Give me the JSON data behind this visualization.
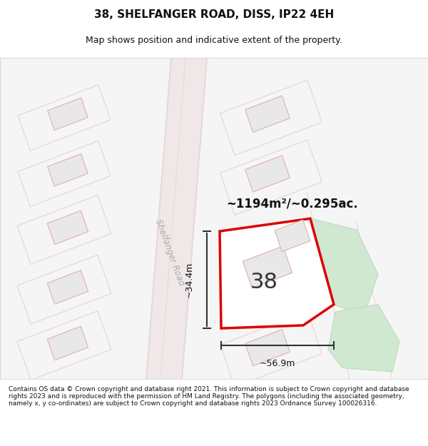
{
  "title_line1": "38, SHELFANGER ROAD, DISS, IP22 4EH",
  "title_line2": "Map shows position and indicative extent of the property.",
  "footer_text": "Contains OS data © Crown copyright and database right 2021. This information is subject to Crown copyright and database rights 2023 and is reproduced with the permission of HM Land Registry. The polygons (including the associated geometry, namely x, y co-ordinates) are subject to Crown copyright and database rights 2023 Ordnance Survey 100026316.",
  "area_label": "~1194m²/~0.295ac.",
  "number_label": "38",
  "width_label": "~56.9m",
  "height_label": "~34.4m",
  "road_label": "Shelfanger Road",
  "bg_color": "#ffffff",
  "map_bg": "#f8f8f8",
  "road_color": "#e8d8d8",
  "building_fill": "#e8e8e8",
  "building_edge": "#e0b0b0",
  "plot_edge_color": "#dd0000",
  "plot_fill": "#ffffff",
  "green_fill": "#d0e8d0",
  "green_edge": "#c0d8c0",
  "dim_line_color": "#333333",
  "text_color": "#111111"
}
